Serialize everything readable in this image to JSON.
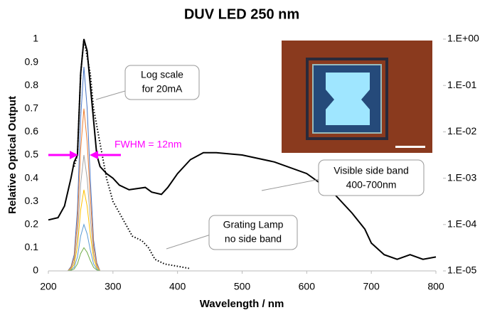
{
  "chart_data": {
    "type": "line",
    "title": "DUV LED 250 nm",
    "x_label": "Wavelength / nm",
    "y_label": "Relative Optical Output",
    "xlim": [
      200,
      800
    ],
    "xticks": [
      200,
      300,
      400,
      500,
      600,
      700,
      800
    ],
    "ylim": [
      0,
      1
    ],
    "yticks": [
      0,
      0.1,
      0.2,
      0.3,
      0.4,
      0.5,
      0.6,
      0.7,
      0.8,
      0.9,
      1
    ],
    "y2lim": [
      1e-05,
      1
    ],
    "y2log": true,
    "y2ticks": [
      {
        "value": 1,
        "label": "1.E+00"
      },
      {
        "value": 0.1,
        "label": "1.E-01"
      },
      {
        "value": 0.01,
        "label": "1.E-02"
      },
      {
        "value": 0.001,
        "label": "1.E-03"
      },
      {
        "value": 0.0001,
        "label": "1.E-04"
      },
      {
        "value": 1e-05,
        "label": "1.E-05"
      }
    ],
    "grid": false,
    "series": [
      {
        "color": "#4472c4",
        "x": [
          230,
          235,
          240,
          245,
          250,
          255,
          260,
          265,
          270,
          275,
          280
        ],
        "values": [
          0,
          0.018,
          0.07,
          0.264,
          0.66,
          0.88,
          0.704,
          0.396,
          0.132,
          0.035,
          0
        ]
      },
      {
        "color": "#ed7d31",
        "x": [
          230,
          235,
          240,
          245,
          250,
          255,
          260,
          265,
          270,
          275,
          280
        ],
        "values": [
          0,
          0.014,
          0.056,
          0.21,
          0.525,
          0.7,
          0.56,
          0.315,
          0.105,
          0.028,
          0
        ]
      },
      {
        "color": "#a5a5a5",
        "x": [
          230,
          235,
          240,
          245,
          250,
          255,
          260,
          265,
          270,
          275,
          280
        ],
        "values": [
          0,
          0.01,
          0.04,
          0.15,
          0.375,
          0.5,
          0.4,
          0.225,
          0.075,
          0.02,
          0
        ]
      },
      {
        "color": "#ffc000",
        "x": [
          230,
          235,
          240,
          245,
          250,
          255,
          260,
          265,
          270,
          275,
          280
        ],
        "values": [
          0,
          0.007,
          0.028,
          0.105,
          0.263,
          0.35,
          0.28,
          0.158,
          0.053,
          0.014,
          0
        ]
      },
      {
        "color": "#5b9bd5",
        "x": [
          230,
          235,
          240,
          245,
          250,
          255,
          260,
          265,
          270,
          275,
          280
        ],
        "values": [
          0,
          0.004,
          0.016,
          0.06,
          0.15,
          0.2,
          0.16,
          0.09,
          0.03,
          0.008,
          0
        ]
      },
      {
        "color": "#70ad47",
        "x": [
          230,
          235,
          240,
          245,
          250,
          255,
          260,
          265,
          270,
          275,
          280
        ],
        "values": [
          0,
          0.002,
          0.008,
          0.03,
          0.075,
          0.1,
          0.08,
          0.045,
          0.015,
          0.004,
          0
        ]
      },
      {
        "color": "#000000",
        "style": "dotted",
        "axis": "y2",
        "x": [
          240,
          245,
          250,
          255,
          265,
          270,
          280,
          290,
          300,
          310,
          320,
          330,
          345,
          355,
          365,
          380,
          400,
          420
        ],
        "values": [
          0.00178,
          0.00316,
          0.178,
          1,
          0.178,
          0.0316,
          0.00562,
          0.001,
          0.000316,
          0.000178,
          0.0001,
          5.62e-05,
          4.47e-05,
          3.16e-05,
          1.78e-05,
          1.41e-05,
          1.26e-05,
          1.12e-05
        ]
      },
      {
        "color": "#000000",
        "style": "solid",
        "axis": "y2",
        "x": [
          200,
          215,
          225,
          235,
          240,
          245,
          250,
          255,
          260,
          265,
          270,
          275,
          280,
          290,
          300,
          310,
          325,
          350,
          360,
          375,
          385,
          400,
          420,
          440,
          460,
          500,
          550,
          600,
          640,
          670,
          690,
          700,
          720,
          740,
          760,
          780,
          800
        ],
        "values": [
          0.000126,
          0.000141,
          0.000251,
          0.001,
          0.00224,
          0.00316,
          0.178,
          1,
          0.562,
          0.1,
          0.0178,
          0.00316,
          0.00178,
          0.00126,
          0.001,
          0.000708,
          0.000562,
          0.000631,
          0.000501,
          0.000447,
          0.000631,
          0.00126,
          0.00251,
          0.00355,
          0.00355,
          0.00316,
          0.00224,
          0.00126,
          0.000501,
          0.000178,
          7.94e-05,
          3.98e-05,
          2.24e-05,
          1.78e-05,
          2.24e-05,
          1.78e-05,
          2e-05
        ]
      }
    ],
    "annotations": {
      "log_note": [
        "Log scale",
        "for 20mA"
      ],
      "fwhm": "FWHM = 12nm",
      "side_band": [
        "Visible side band",
        "400-700nm"
      ],
      "lamp": [
        "Grating Lamp",
        "no side band"
      ]
    }
  }
}
